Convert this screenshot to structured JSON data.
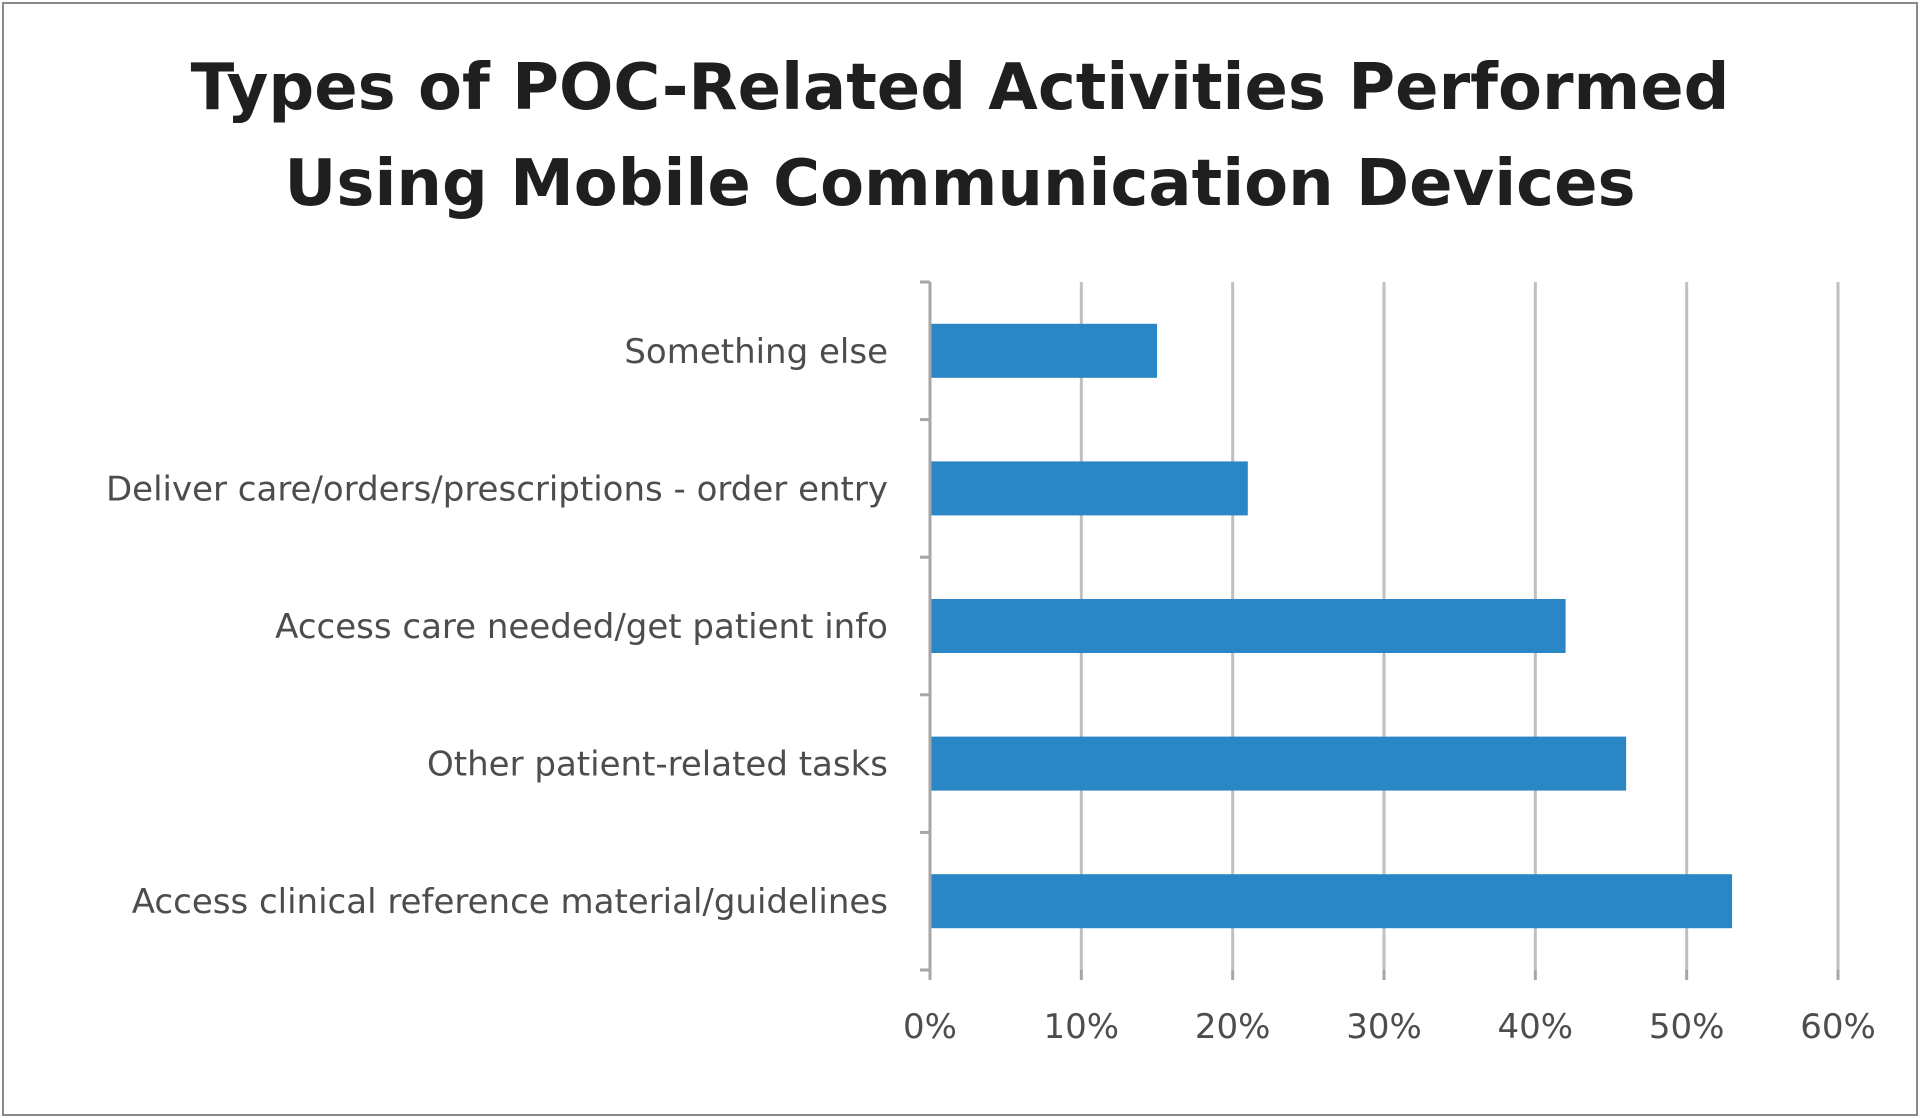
{
  "chart_data": {
    "type": "bar",
    "orientation": "horizontal",
    "title": "Types of POC-Related Activities Performed Using Mobile Communication Devices",
    "title_lines": [
      "Types of POC-Related Activities Performed",
      "Using Mobile Communication Devices"
    ],
    "categories": [
      "Something else",
      "Deliver care/orders/prescriptions  - order entry",
      "Access care needed/get patient info",
      "Other patient-related tasks",
      "Access clinical reference  material/guidelines"
    ],
    "values": [
      0.15,
      0.21,
      0.42,
      0.46,
      0.53
    ],
    "xlim": [
      0,
      0.6
    ],
    "x_ticks": [
      0,
      0.1,
      0.2,
      0.3,
      0.4,
      0.5,
      0.6
    ],
    "x_tick_labels": [
      "0%",
      "10%",
      "20%",
      "30%",
      "40%",
      "50%",
      "60%"
    ],
    "xlabel": "",
    "ylabel": "",
    "grid": "vertical",
    "legend": "none",
    "bar_color": "#2b86c5",
    "grid_color": "#bfbfbf",
    "axis_color": "#a6a6a6"
  }
}
